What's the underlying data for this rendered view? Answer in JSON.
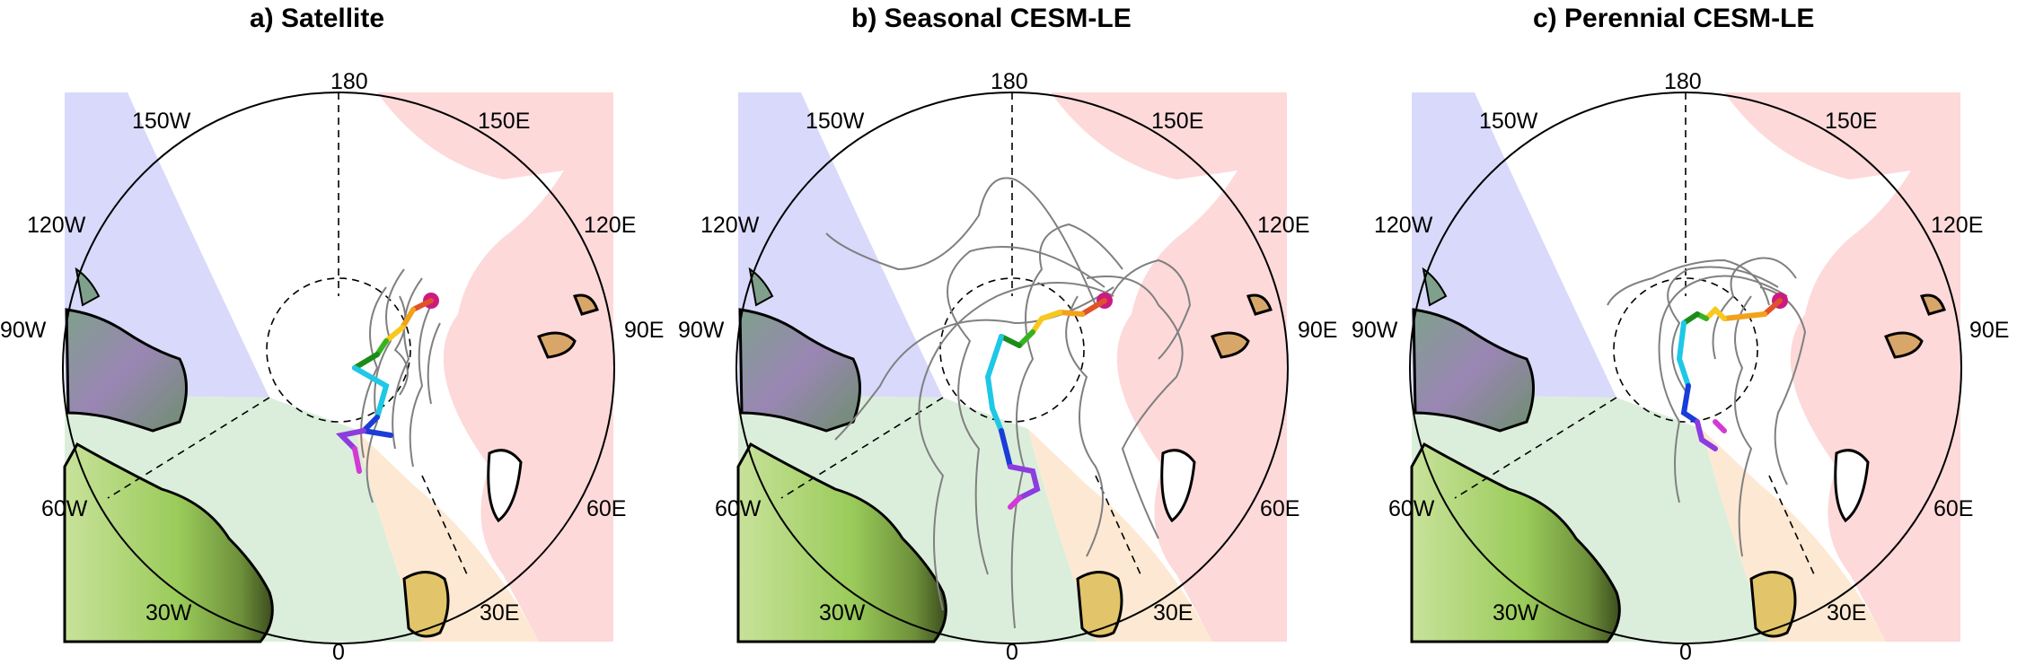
{
  "figure": {
    "panels": [
      {
        "title": "a)   Satellite",
        "labels": {
          "top": "180",
          "bottom": "0",
          "upper_left": "150W",
          "upper_right": "150E",
          "mid_left": "120W",
          "mid_right": "120E",
          "left": "90W",
          "right": "90E",
          "lower_left": "60W",
          "lower_right": "60E",
          "bottom_left": "30W",
          "bottom_right": "30E"
        },
        "track_spread": "low"
      },
      {
        "title": "b)  Seasonal CESM-LE",
        "labels": {
          "top": "180",
          "bottom": "0",
          "upper_left": "150W",
          "upper_right": "150E",
          "mid_left": "120W",
          "mid_right": "120E",
          "left": "90W",
          "right": "90E",
          "lower_left": "60W",
          "lower_right": "60E",
          "bottom_left": "30W",
          "bottom_right": "30E"
        },
        "track_spread": "high"
      },
      {
        "title": "c)  Perennial CESM-LE",
        "labels": {
          "top": "180",
          "bottom": "0",
          "upper_left": "150W",
          "upper_right": "150E",
          "mid_left": "120W",
          "mid_right": "120E",
          "left": "90W",
          "right": "90E",
          "lower_left": "60W",
          "lower_right": "60E",
          "bottom_left": "30W",
          "bottom_right": "30E"
        },
        "track_spread": "medium"
      }
    ],
    "colors": {
      "pacific_region": "#d9d9fb",
      "atlantic_region": "#dbeedb",
      "barents_region": "#fde9d3",
      "siberian_region": "#fdd9da",
      "ensemble_tracks": "#808080",
      "mean_track": [
        "#cc1a80",
        "#e0522a",
        "#f2a21a",
        "#f7c81e",
        "#36b31e",
        "#1a8c1a",
        "#1ec8e6",
        "#1a3cd8",
        "#8c3ce0",
        "#d23ad6"
      ]
    }
  }
}
